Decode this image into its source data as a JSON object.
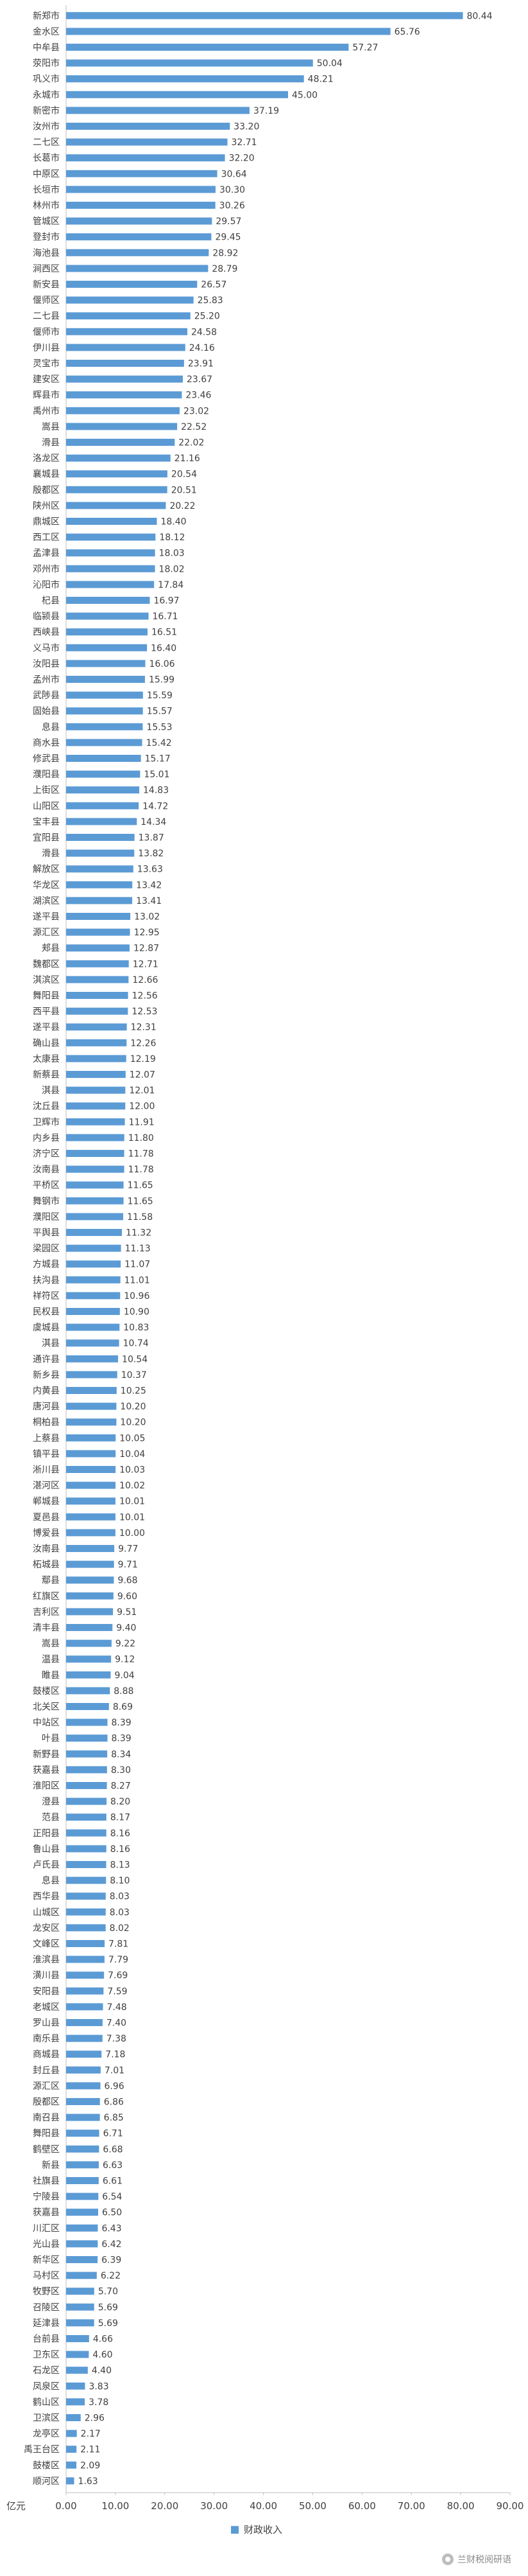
{
  "chart_data": {
    "type": "bar",
    "orientation": "horizontal",
    "unit_label": "亿元",
    "xlim": [
      0,
      90
    ],
    "x_ticks": [
      "0.00",
      "10.00",
      "20.00",
      "30.00",
      "40.00",
      "50.00",
      "60.00",
      "70.00",
      "80.00",
      "90.00"
    ],
    "legend": "财政收入",
    "legend_position": "bottom",
    "bar_color": "#5b9bd5",
    "grid": false,
    "categories": [
      "新郑市",
      "金水区",
      "中牟县",
      "荥阳市",
      "巩义市",
      "永城市",
      "新密市",
      "汝州市",
      "二七区",
      "长葛市",
      "中原区",
      "长垣市",
      "林州市",
      "管城区",
      "登封市",
      "海池县",
      "涧西区",
      "新安县",
      "偃师区",
      "二七县",
      "偃师市",
      "伊川县",
      "灵宝市",
      "建安区",
      "辉县市",
      "禹州市",
      "嵩县",
      "滑县",
      "洛龙区",
      "襄城县",
      "殷都区",
      "陕州区",
      "鼎城区",
      "西工区",
      "孟津县",
      "邓州市",
      "沁阳市",
      "杞县",
      "临颍县",
      "西峡县",
      "义马市",
      "汝阳县",
      "孟州市",
      "武陟县",
      "固始县",
      "息县",
      "商水县",
      "修武县",
      "濮阳县",
      "上街区",
      "山阳区",
      "宝丰县",
      "宜阳县",
      "滑县",
      "解放区",
      "华龙区",
      "湖滨区",
      "遂平县",
      "源汇区",
      "郏县",
      "魏都区",
      "淇滨区",
      "舞阳县",
      "西平县",
      "遂平县",
      "确山县",
      "太康县",
      "新蔡县",
      "淇县",
      "沈丘县",
      "卫辉市",
      "内乡县",
      "济宁区",
      "汝南县",
      "平桥区",
      "舞钢市",
      "濮阳区",
      "平舆县",
      "梁园区",
      "方城县",
      "扶沟县",
      "祥符区",
      "民权县",
      "虞城县",
      "淇县",
      "通许县",
      "新乡县",
      "内黄县",
      "唐河县",
      "桐柏县",
      "上蔡县",
      "镇平县",
      "淅川县",
      "湛河区",
      "郸城县",
      "夏邑县",
      "博爱县",
      "汝南县",
      "柘城县",
      "鄢县",
      "红旗区",
      "吉利区",
      "清丰县",
      "嵩县",
      "温县",
      "睢县",
      "鼓楼区",
      "北关区",
      "中站区",
      "叶县",
      "新野县",
      "获嘉县",
      "淮阳区",
      "澄县",
      "范县",
      "正阳县",
      "鲁山县",
      "卢氏县",
      "息县",
      "西华县",
      "山城区",
      "龙安区",
      "文峰区",
      "淮滨县",
      "潢川县",
      "安阳县",
      "老城区",
      "罗山县",
      "南乐县",
      "商城县",
      "封丘县",
      "源汇区",
      "殷都区",
      "南召县",
      "舞阳县",
      "鹤壁区",
      "新县",
      "社旗县",
      "宁陵县",
      "获嘉县",
      "川汇区",
      "光山县",
      "新华区",
      "马村区",
      "牧野区",
      "召陵区",
      "延津县",
      "台前县",
      "卫东区",
      "石龙区",
      "凤泉区",
      "鹤山区",
      "卫滨区",
      "龙亭区",
      "禹王台区",
      "鼓楼区",
      "顺河区"
    ],
    "values": [
      80.44,
      65.76,
      57.27,
      50.04,
      48.21,
      45.0,
      37.19,
      33.2,
      32.71,
      32.2,
      30.64,
      30.3,
      30.26,
      29.57,
      29.45,
      28.92,
      28.79,
      26.57,
      25.83,
      25.2,
      24.58,
      24.16,
      23.91,
      23.67,
      23.46,
      23.02,
      22.52,
      22.02,
      21.16,
      20.54,
      20.51,
      20.22,
      18.4,
      18.12,
      18.03,
      18.02,
      17.84,
      16.97,
      16.71,
      16.51,
      16.4,
      16.06,
      15.99,
      15.59,
      15.57,
      15.53,
      15.42,
      15.17,
      15.01,
      14.83,
      14.72,
      14.34,
      13.87,
      13.82,
      13.63,
      13.42,
      13.41,
      13.02,
      12.95,
      12.87,
      12.71,
      12.66,
      12.56,
      12.53,
      12.31,
      12.26,
      12.19,
      12.07,
      12.01,
      12.0,
      11.91,
      11.8,
      11.78,
      11.78,
      11.65,
      11.65,
      11.58,
      11.32,
      11.13,
      11.07,
      11.01,
      10.96,
      10.9,
      10.83,
      10.74,
      10.54,
      10.37,
      10.25,
      10.2,
      10.2,
      10.05,
      10.04,
      10.03,
      10.02,
      10.01,
      10.01,
      10.0,
      9.77,
      9.71,
      9.68,
      9.6,
      9.51,
      9.4,
      9.22,
      9.12,
      9.04,
      8.88,
      8.69,
      8.39,
      8.39,
      8.34,
      8.3,
      8.27,
      8.2,
      8.17,
      8.16,
      8.16,
      8.13,
      8.1,
      8.03,
      8.03,
      8.02,
      7.81,
      7.79,
      7.69,
      7.59,
      7.48,
      7.4,
      7.38,
      7.18,
      7.01,
      6.96,
      6.86,
      6.85,
      6.71,
      6.68,
      6.63,
      6.61,
      6.54,
      6.5,
      6.43,
      6.42,
      6.39,
      6.22,
      5.7,
      5.69,
      5.69,
      4.66,
      4.6,
      4.4,
      3.83,
      3.78,
      2.96,
      2.17,
      2.11,
      2.09,
      1.63
    ]
  },
  "watermark": "兰财税阅研语"
}
